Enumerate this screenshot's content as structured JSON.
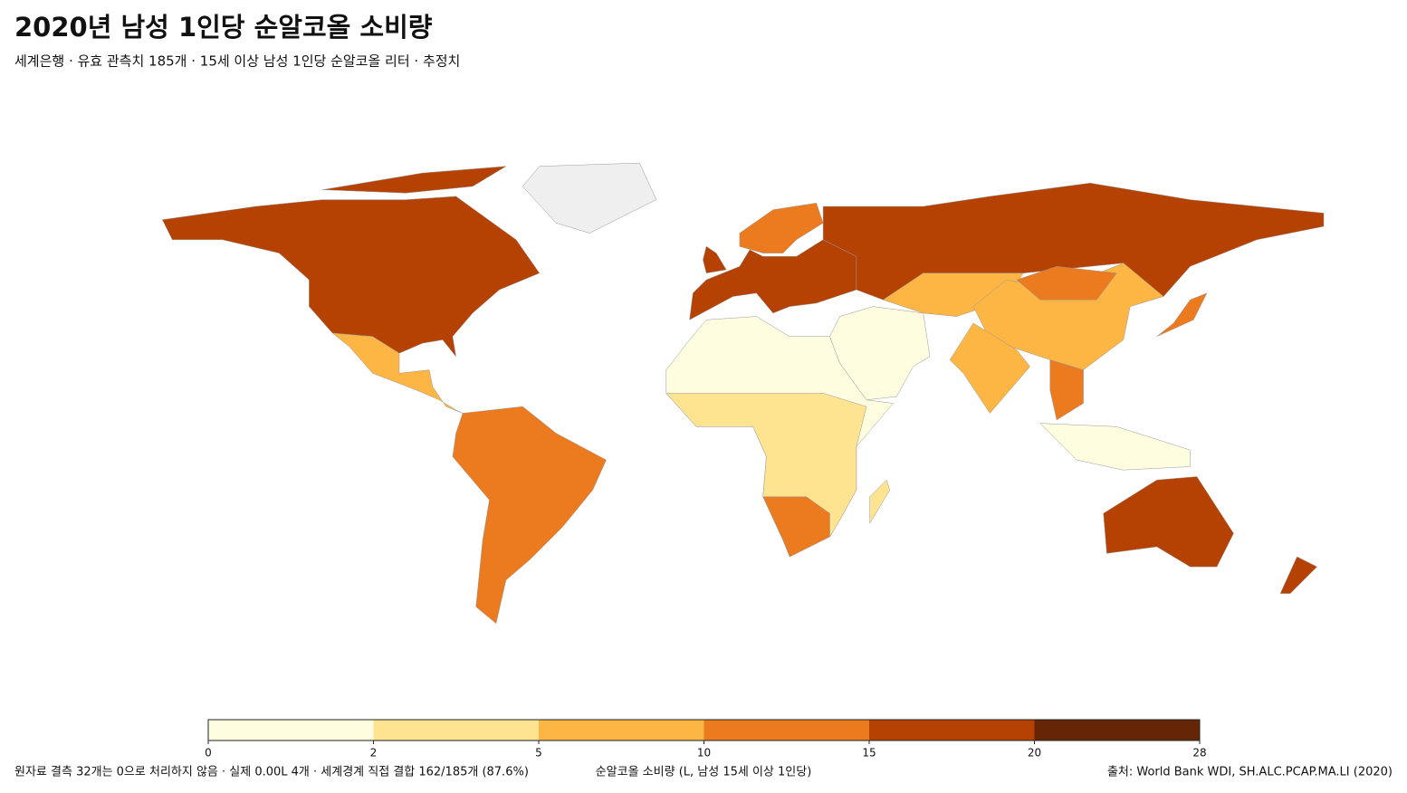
{
  "chart_data": {
    "type": "choropleth",
    "title": "2020년 남성 1인당 순알코올 소비량",
    "subtitle": "세계은행 · 유효 관측치 185개 · 15세 이상 남성 1인당 순알코올 리터 · 추정치",
    "colorbar": {
      "label": "순알코올 소비량 (L, 남성 15세 이상 1인당)",
      "bins": [
        0,
        2,
        5,
        10,
        15,
        20,
        28
      ],
      "colors": [
        "#fffde0",
        "#fee391",
        "#fdb543",
        "#ec7a1f",
        "#b54202",
        "#662506"
      ]
    },
    "note": "원자료 결측 32개는 0으로 처리하지 않음 · 실제 0.00L 4개 · 세계경계 직접 결합 162/185개 (87.6%)",
    "source": "출처: World Bank WDI, SH.ALC.PCAP.MA.LI (2020)"
  }
}
